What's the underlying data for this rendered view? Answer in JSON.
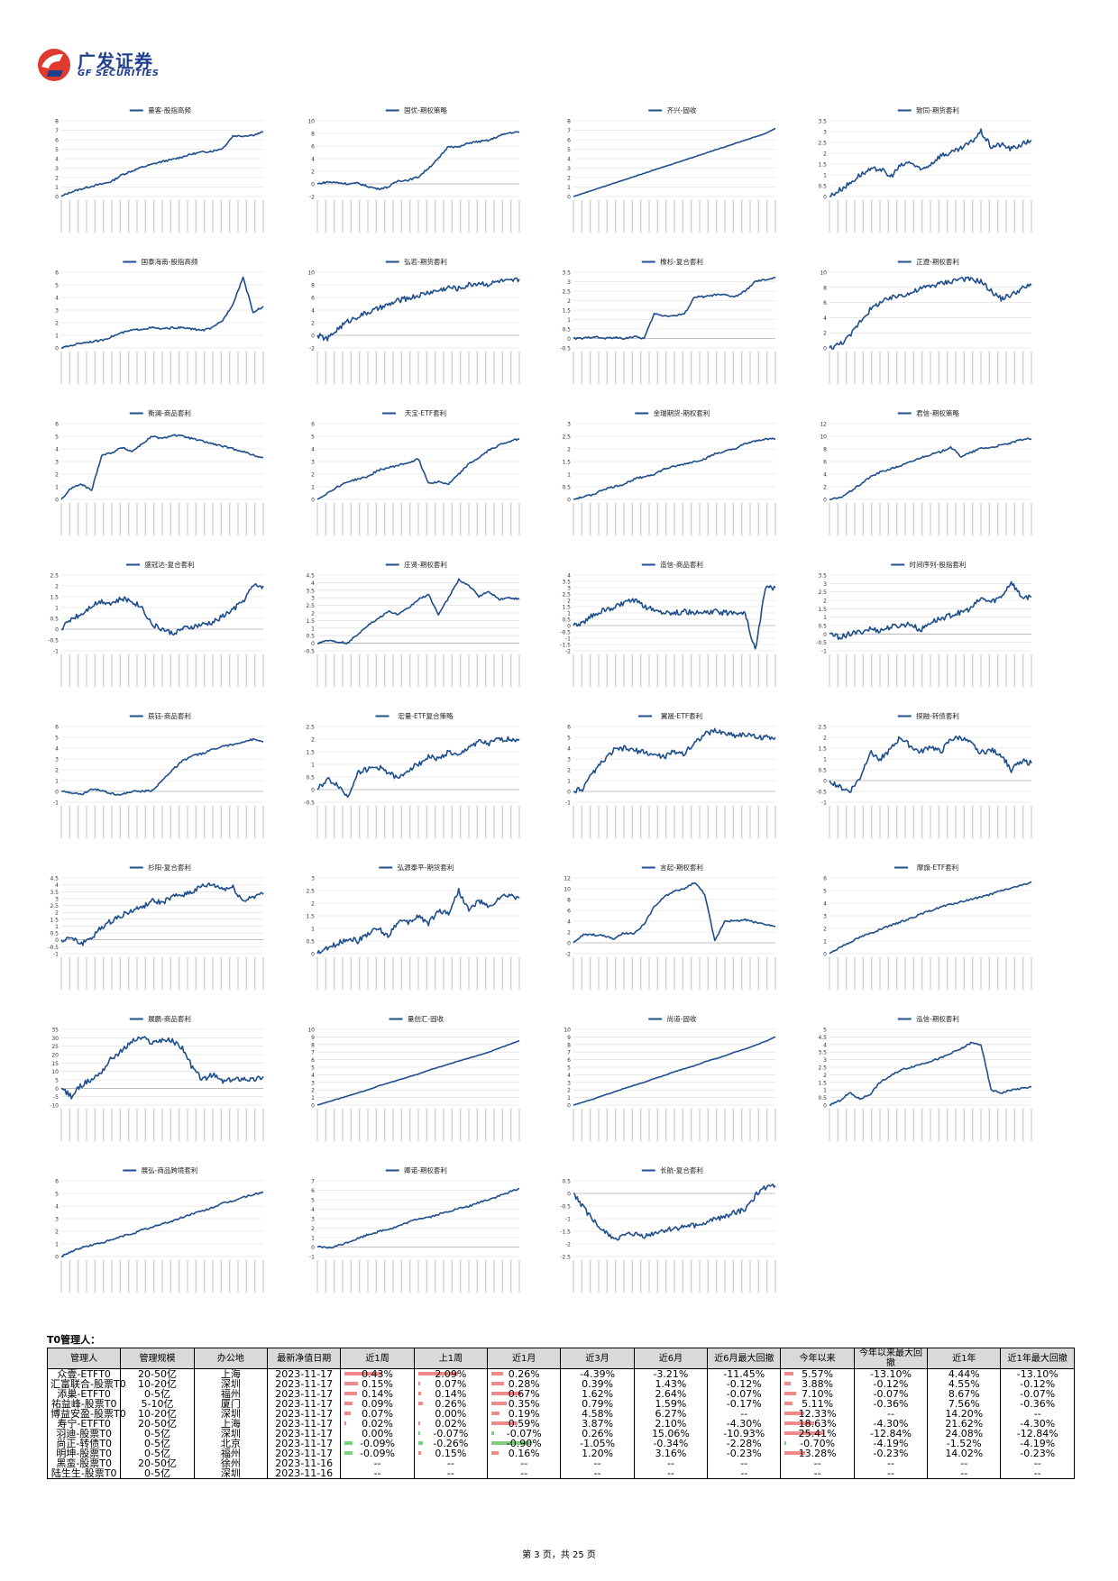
{
  "header": {
    "logo_cn": "广发证券",
    "logo_en": "GF SECURITIES",
    "colors": {
      "brand_blue": "#1f3f8f",
      "brand_red": "#e03a2f",
      "line": "#1f4e8c"
    }
  },
  "charts": [
    {
      "title": "量客-股指高频",
      "yticks": [
        "0",
        "1",
        "2",
        "3",
        "4",
        "5",
        "6",
        "7",
        "8"
      ],
      "ymin": 0,
      "ymax": 8,
      "kind": "smooth",
      "pts": [
        0,
        0.5,
        0.8,
        1.1,
        1.3,
        1.6,
        2.3,
        2.7,
        3.1,
        3.4,
        3.7,
        3.9,
        4.2,
        4.5,
        4.7,
        4.8,
        5.1,
        6.4,
        6.4,
        6.5,
        6.8
      ]
    },
    {
      "title": "国优-期权策略",
      "yticks": [
        "-2",
        "0",
        "2",
        "4",
        "6",
        "8",
        "10"
      ],
      "ymin": -2,
      "ymax": 10,
      "kind": "smooth",
      "pts": [
        0,
        0.3,
        0.2,
        0,
        0.1,
        -0.4,
        -0.8,
        -0.5,
        0.5,
        0.6,
        1.1,
        2.5,
        4,
        6,
        5.8,
        6.5,
        6.7,
        6.9,
        7.6,
        8.1,
        8.2
      ]
    },
    {
      "title": "齐兴-固收",
      "yticks": [
        "0",
        "1",
        "2",
        "3",
        "4",
        "5",
        "6",
        "7",
        "8"
      ],
      "ymin": 0,
      "ymax": 8,
      "kind": "linear",
      "pts": [
        0,
        0.35,
        0.7,
        1.05,
        1.4,
        1.75,
        2.1,
        2.45,
        2.8,
        3.15,
        3.5,
        3.85,
        4.2,
        4.55,
        4.9,
        5.25,
        5.6,
        5.95,
        6.3,
        6.65,
        7.2
      ]
    },
    {
      "title": "致同-期货套利",
      "yticks": [
        "0",
        "0.5",
        "1",
        "1.5",
        "2",
        "2.5",
        "3",
        "3.5"
      ],
      "ymin": 0,
      "ymax": 3.5,
      "kind": "noisy",
      "pts": [
        0,
        0.3,
        0.6,
        1.0,
        1.2,
        1.3,
        0.9,
        1.4,
        1.6,
        1.2,
        1.5,
        1.9,
        2.0,
        2.2,
        2.5,
        3.0,
        2.3,
        2.4,
        2.2,
        2.4,
        2.6
      ]
    },
    {
      "title": "国泰海南-股指高频",
      "yticks": [
        "0",
        "1",
        "2",
        "3",
        "4",
        "5",
        "6"
      ],
      "ymin": 0,
      "ymax": 6,
      "kind": "smooth",
      "pts": [
        0,
        0.2,
        0.4,
        0.5,
        0.6,
        0.9,
        1.2,
        1.4,
        1.5,
        1.6,
        1.5,
        1.6,
        1.6,
        1.5,
        1.4,
        1.6,
        2.2,
        3.5,
        5.6,
        2.8,
        3.3
      ]
    },
    {
      "title": "弘若-期货套利",
      "yticks": [
        "-2",
        "0",
        "2",
        "4",
        "6",
        "8",
        "10"
      ],
      "ymin": -2,
      "ymax": 10,
      "kind": "noisy",
      "pts": [
        0,
        -0.6,
        1.0,
        2.2,
        3.0,
        3.6,
        4.2,
        4.8,
        5.5,
        5.9,
        6.3,
        6.8,
        7.1,
        7.6,
        7.4,
        8.0,
        8.3,
        8.1,
        8.6,
        8.5,
        8.9
      ]
    },
    {
      "title": "橡杉-复合套利",
      "yticks": [
        "-0.5",
        "0",
        "0.5",
        "1",
        "1.5",
        "2",
        "2.5",
        "3",
        "3.5"
      ],
      "ymin": -0.5,
      "ymax": 3.5,
      "kind": "smooth",
      "pts": [
        0,
        0,
        0.1,
        0,
        0.05,
        0,
        0.1,
        0,
        1.3,
        1.2,
        1.2,
        1.3,
        2.2,
        2.2,
        2.3,
        2.3,
        2.2,
        2.5,
        3.0,
        3.1,
        3.2
      ]
    },
    {
      "title": "正遼-期权套利",
      "yticks": [
        "0",
        "2",
        "4",
        "6",
        "8",
        "10"
      ],
      "ymin": 0,
      "ymax": 10,
      "kind": "noisy",
      "pts": [
        0,
        0.5,
        1.5,
        3.5,
        5,
        6,
        6.5,
        7,
        7.2,
        7.8,
        8.2,
        8.5,
        8.8,
        9.2,
        9.0,
        8.8,
        7.5,
        6.5,
        7.0,
        7.8,
        8.3
      ]
    },
    {
      "title": "衡澜-商品套利",
      "yticks": [
        "0",
        "1",
        "2",
        "3",
        "4",
        "5",
        "6"
      ],
      "ymin": 0,
      "ymax": 6,
      "kind": "smooth",
      "pts": [
        0,
        0.9,
        1.2,
        0.7,
        3.5,
        3.7,
        4.1,
        3.8,
        4.4,
        5.0,
        4.8,
        5.1,
        5.0,
        4.8,
        4.6,
        4.4,
        4.2,
        4.0,
        3.8,
        3.5,
        3.3
      ]
    },
    {
      "title": "天宝-ETF套利",
      "yticks": [
        "0",
        "1",
        "2",
        "3",
        "4",
        "5",
        "6"
      ],
      "ymin": 0,
      "ymax": 6,
      "kind": "smooth",
      "pts": [
        0,
        0.5,
        1.0,
        1.4,
        1.6,
        1.8,
        2.3,
        2.5,
        2.7,
        2.9,
        3.2,
        1.3,
        1.4,
        1.2,
        2.0,
        2.8,
        3.3,
        3.9,
        4.3,
        4.6,
        4.8
      ]
    },
    {
      "title": "金瑞期货-期权套利",
      "yticks": [
        "0",
        "0.5",
        "1",
        "1.5",
        "2",
        "2.5",
        "3"
      ],
      "ymin": 0,
      "ymax": 3,
      "kind": "smooth",
      "pts": [
        0,
        0.1,
        0.2,
        0.4,
        0.5,
        0.6,
        0.8,
        0.9,
        1.0,
        1.2,
        1.3,
        1.4,
        1.5,
        1.6,
        1.8,
        1.9,
        2.0,
        2.2,
        2.3,
        2.4,
        2.4
      ]
    },
    {
      "title": "君信-期权策略",
      "yticks": [
        "0",
        "2",
        "4",
        "6",
        "8",
        "10",
        "12"
      ],
      "ymin": 0,
      "ymax": 12,
      "kind": "smooth",
      "pts": [
        0,
        0.2,
        1.2,
        2.3,
        3.5,
        4.3,
        4.8,
        5.3,
        5.9,
        6.6,
        7.1,
        7.5,
        8.3,
        6.8,
        7.4,
        8.1,
        8.2,
        8.6,
        8.9,
        9.5,
        9.6
      ]
    },
    {
      "title": "盛冠达-复合套利",
      "yticks": [
        "-1",
        "-0.5",
        "0",
        "0.5",
        "1",
        "1.5",
        "2",
        "2.5"
      ],
      "ymin": -1,
      "ymax": 2.5,
      "kind": "noisy",
      "pts": [
        0,
        0.5,
        0.7,
        1.1,
        1.3,
        1.2,
        1.4,
        1.3,
        1.0,
        0.2,
        0.0,
        -0.2,
        0,
        0.1,
        0.2,
        0.3,
        0.6,
        0.9,
        1.3,
        2.0,
        2.0
      ]
    },
    {
      "title": "庄贤-期权套利",
      "yticks": [
        "-0.5",
        "0",
        "0.5",
        "1",
        "1.5",
        "2",
        "2.5",
        "3",
        "3.5",
        "4",
        "4.5"
      ],
      "ymin": -0.5,
      "ymax": 4.5,
      "kind": "smooth",
      "pts": [
        0,
        0.2,
        0.1,
        0,
        0.6,
        1.2,
        1.6,
        2.1,
        1.9,
        2.3,
        2.9,
        3.2,
        1.9,
        3.0,
        4.2,
        3.8,
        3.1,
        3.4,
        2.9,
        3.0,
        2.9
      ]
    },
    {
      "title": "造信-商品套利",
      "yticks": [
        "-2",
        "-1.5",
        "-1",
        "-0.5",
        "0",
        "0.5",
        "1",
        "1.5",
        "2",
        "2.5",
        "3",
        "3.5",
        "4"
      ],
      "ymin": -2,
      "ymax": 4,
      "kind": "noisy",
      "pts": [
        0,
        0.2,
        0.9,
        1.2,
        1.4,
        1.8,
        2.0,
        1.5,
        1.2,
        1.1,
        1.0,
        1.1,
        1.0,
        1.0,
        1.1,
        1.0,
        1.1,
        1.0,
        -2,
        3.0,
        3.0
      ]
    },
    {
      "title": "时间序列-股指套利",
      "yticks": [
        "-1",
        "-0.5",
        "0",
        "0.5",
        "1",
        "1.5",
        "2",
        "2.5",
        "3",
        "3.5"
      ],
      "ymin": -1,
      "ymax": 3.5,
      "kind": "noisy",
      "pts": [
        0,
        -0.2,
        0,
        0.1,
        0.3,
        0.2,
        0.4,
        0.5,
        0.6,
        0.2,
        0.7,
        0.9,
        1.1,
        1.3,
        1.5,
        2.1,
        1.9,
        2.2,
        3.1,
        2.2,
        2.2
      ]
    },
    {
      "title": "辰钰-商品套利",
      "yticks": [
        "-1",
        "0",
        "1",
        "2",
        "3",
        "4",
        "5",
        "6"
      ],
      "ymin": -1,
      "ymax": 6,
      "kind": "smooth",
      "pts": [
        0,
        -0.1,
        -0.3,
        0.2,
        0.1,
        -0.2,
        -0.3,
        0,
        0,
        0.1,
        1.0,
        2.0,
        2.8,
        3.3,
        3.5,
        3.9,
        4.2,
        4.3,
        4.6,
        4.8,
        4.6
      ]
    },
    {
      "title": "宏量-ETF复合策略",
      "yticks": [
        "-0.5",
        "0",
        "0.5",
        "1",
        "1.5",
        "2",
        "2.5"
      ],
      "ymin": -0.5,
      "ymax": 2.5,
      "kind": "noisy",
      "pts": [
        0,
        0.4,
        0.2,
        -0.3,
        0.7,
        0.8,
        0.9,
        0.7,
        0.4,
        0.8,
        1.0,
        1.3,
        1.2,
        1.5,
        1.3,
        1.7,
        1.9,
        1.8,
        2.0,
        2.0,
        2.0
      ]
    },
    {
      "title": "翼晟-ETF套利",
      "yticks": [
        "-1",
        "0",
        "1",
        "2",
        "3",
        "4",
        "5",
        "6"
      ],
      "ymin": -1,
      "ymax": 6,
      "kind": "noisy",
      "pts": [
        0,
        0.3,
        1.8,
        2.8,
        3.8,
        4.0,
        3.8,
        3.6,
        3.4,
        3.2,
        3.7,
        3.5,
        4.5,
        5.3,
        5.6,
        5.4,
        5.2,
        5.3,
        5.0,
        5.0,
        5.0
      ]
    },
    {
      "title": "探融-转债套利",
      "yticks": [
        "-1",
        "-0.5",
        "0",
        "0.5",
        "1",
        "1.5",
        "2",
        "2.5"
      ],
      "ymin": -1,
      "ymax": 2.5,
      "kind": "noisy",
      "pts": [
        0,
        -0.3,
        -0.5,
        0.1,
        1.3,
        1.0,
        1.4,
        2.0,
        1.6,
        1.3,
        1.6,
        1.3,
        1.9,
        2.0,
        1.7,
        1.3,
        1.4,
        1.2,
        0.5,
        0.9,
        0.8
      ]
    },
    {
      "title": "杉阳-复合套利",
      "yticks": [
        "-1",
        "-0.5",
        "0",
        "0.5",
        "1",
        "1.5",
        "2",
        "2.5",
        "3",
        "3.5",
        "4",
        "4.5"
      ],
      "ymin": -1,
      "ymax": 4.5,
      "kind": "noisy",
      "pts": [
        0,
        0.1,
        -0.3,
        0.2,
        0.9,
        1.4,
        1.8,
        2.1,
        2.4,
        2.8,
        2.7,
        3.1,
        3.3,
        3.5,
        3.9,
        4.0,
        3.7,
        3.8,
        2.8,
        3.2,
        3.3
      ]
    },
    {
      "title": "弘源泰平-期货套利",
      "yticks": [
        "0",
        "0.5",
        "1",
        "1.5",
        "2",
        "2.5",
        "3"
      ],
      "ymin": 0,
      "ymax": 3,
      "kind": "noisy",
      "pts": [
        0,
        0.2,
        0.4,
        0.6,
        0.5,
        0.8,
        1.0,
        0.7,
        1.3,
        1.2,
        1.5,
        1.2,
        1.7,
        1.6,
        2.5,
        1.7,
        2.1,
        1.8,
        2.2,
        2.3,
        2.2
      ]
    },
    {
      "title": "言起-期权套利",
      "yticks": [
        "-2",
        "0",
        "2",
        "4",
        "6",
        "8",
        "10",
        "12"
      ],
      "ymin": -2,
      "ymax": 12,
      "kind": "smooth",
      "pts": [
        0,
        1.5,
        1.5,
        1.3,
        0.7,
        1.8,
        1.6,
        3.5,
        6.6,
        8.5,
        9.5,
        10.0,
        11.2,
        9.0,
        0.3,
        4.1,
        4.0,
        4.3,
        3.8,
        3.5,
        3.0
      ]
    },
    {
      "title": "摩旗-ETF套利",
      "yticks": [
        "0",
        "1",
        "2",
        "3",
        "4",
        "5",
        "6"
      ],
      "ymin": 0,
      "ymax": 6,
      "kind": "smooth",
      "pts": [
        0,
        0.5,
        0.9,
        1.3,
        1.6,
        1.9,
        2.2,
        2.5,
        2.8,
        3.1,
        3.4,
        3.7,
        3.9,
        4.1,
        4.3,
        4.5,
        4.7,
        5.0,
        5.2,
        5.4,
        5.7
      ]
    },
    {
      "title": "展鹏-商品套利",
      "yticks": [
        "-10",
        "-5",
        "0",
        "5",
        "10",
        "15",
        "20",
        "25",
        "30",
        "35"
      ],
      "ymin": -10,
      "ymax": 35,
      "kind": "noisy",
      "pts": [
        0,
        -5,
        2,
        5,
        10,
        18,
        22,
        28,
        30,
        27,
        29,
        28,
        24,
        12,
        5,
        8,
        4,
        5,
        6,
        5,
        7
      ]
    },
    {
      "title": "量创汇-固收",
      "yticks": [
        "0",
        "1",
        "2",
        "3",
        "4",
        "5",
        "6",
        "7",
        "8",
        "9",
        "10"
      ],
      "ymin": 0,
      "ymax": 10,
      "kind": "linear",
      "pts": [
        0,
        0.4,
        0.8,
        1.2,
        1.6,
        2.0,
        2.5,
        2.9,
        3.3,
        3.7,
        4.1,
        4.6,
        5.0,
        5.4,
        5.8,
        6.2,
        6.6,
        7.0,
        7.5,
        8.0,
        8.5
      ]
    },
    {
      "title": "尚道-固收",
      "yticks": [
        "0",
        "1",
        "2",
        "3",
        "4",
        "5",
        "6",
        "7",
        "8",
        "9",
        "10"
      ],
      "ymin": 0,
      "ymax": 10,
      "kind": "linear",
      "pts": [
        0,
        0.4,
        0.8,
        1.3,
        1.7,
        2.2,
        2.6,
        3.0,
        3.5,
        3.9,
        4.4,
        4.8,
        5.2,
        5.7,
        6.1,
        6.5,
        7.0,
        7.4,
        7.9,
        8.4,
        9.0
      ]
    },
    {
      "title": "泓信-期权套利",
      "yticks": [
        "0",
        "0.5",
        "1",
        "1.5",
        "2",
        "2.5",
        "3",
        "3.5",
        "4",
        "4.5",
        "5"
      ],
      "ymin": 0,
      "ymax": 5,
      "kind": "smooth",
      "pts": [
        0,
        0.3,
        0.8,
        0.4,
        0.7,
        1.5,
        1.9,
        2.3,
        2.5,
        2.7,
        2.9,
        3.1,
        3.4,
        3.7,
        4.1,
        4.0,
        1.0,
        0.8,
        1.0,
        1.1,
        1.2
      ]
    },
    {
      "title": "展弘-商品跨境套利",
      "yticks": [
        "0",
        "1",
        "2",
        "3",
        "4",
        "5",
        "6"
      ],
      "ymin": 0,
      "ymax": 6,
      "kind": "smooth",
      "pts": [
        0,
        0.4,
        0.7,
        0.9,
        1.1,
        1.3,
        1.6,
        1.8,
        2.1,
        2.3,
        2.6,
        2.8,
        3.1,
        3.4,
        3.6,
        3.9,
        4.2,
        4.4,
        4.7,
        4.9,
        5.1
      ]
    },
    {
      "title": "卿诺-期权套利",
      "yticks": [
        "-1",
        "0",
        "1",
        "2",
        "3",
        "4",
        "5",
        "6",
        "7"
      ],
      "ymin": -1,
      "ymax": 7,
      "kind": "smooth",
      "pts": [
        0,
        -0.1,
        0.3,
        0.8,
        1.3,
        1.7,
        2.0,
        2.5,
        3.0,
        3.2,
        3.6,
        4.0,
        4.3,
        4.8,
        5.2,
        5.7,
        6.2
      ]
    },
    {
      "title": "长航-复合套利",
      "yticks": [
        "-2.5",
        "-2",
        "-1.5",
        "-1",
        "-0.5",
        "0",
        "0.5"
      ],
      "ymin": -2.5,
      "ymax": 0.5,
      "kind": "noisy",
      "pts": [
        0,
        -0.8,
        -1.5,
        -1.8,
        -1.6,
        -1.7,
        -1.5,
        -1.4,
        -1.3,
        -1.2,
        -1.0,
        -0.8,
        -0.6,
        0.2,
        0.3
      ]
    }
  ],
  "t0": {
    "title": "T0管理人：",
    "headers": [
      "管理人",
      "管理规模",
      "办公地",
      "最新净值日期",
      "近1周",
      "上1周",
      "近1月",
      "近3月",
      "近6月",
      "近6月最大回撤",
      "今年以来",
      "今年以来最大回撤",
      "近1年",
      "近1年最大回撤"
    ],
    "rows": [
      [
        "众壹-ETFT0",
        "20-50亿",
        "上海",
        "2023-11-17",
        "0.43%",
        "2.09%",
        "0.26%",
        "-4.39%",
        "-3.21%",
        "-11.45%",
        "5.57%",
        "-13.10%",
        "4.44%",
        "-13.10%"
      ],
      [
        "汇富联合-股票T0",
        "10-20亿",
        "深圳",
        "2023-11-17",
        "0.15%",
        "0.07%",
        "0.28%",
        "0.39%",
        "1.43%",
        "-0.12%",
        "3.88%",
        "-0.12%",
        "4.55%",
        "-0.12%"
      ],
      [
        "添巢-ETFT0",
        "0-5亿",
        "福州",
        "2023-11-17",
        "0.14%",
        "0.14%",
        "0.67%",
        "1.62%",
        "2.64%",
        "-0.07%",
        "7.10%",
        "-0.07%",
        "8.67%",
        "-0.07%"
      ],
      [
        "祐益峰-股票T0",
        "5-10亿",
        "厦门",
        "2023-11-17",
        "0.09%",
        "0.26%",
        "0.35%",
        "0.79%",
        "1.59%",
        "-0.17%",
        "5.11%",
        "-0.36%",
        "7.56%",
        "-0.36%"
      ],
      [
        "博益安盈-股票T0",
        "10-20亿",
        "深圳",
        "2023-11-17",
        "0.07%",
        "0.00%",
        "0.19%",
        "4.58%",
        "6.27%",
        "--",
        "12.33%",
        "--",
        "14.20%",
        "--"
      ],
      [
        "寿宁-ETFT0",
        "20-50亿",
        "上海",
        "2023-11-17",
        "0.02%",
        "0.02%",
        "0.59%",
        "3.87%",
        "2.10%",
        "-4.30%",
        "18.63%",
        "-4.30%",
        "21.62%",
        "-4.30%"
      ],
      [
        "羽迪-股票T0",
        "0-5亿",
        "深圳",
        "2023-11-17",
        "0.00%",
        "-0.07%",
        "-0.07%",
        "0.26%",
        "15.06%",
        "-10.93%",
        "25.41%",
        "-12.84%",
        "24.08%",
        "-12.84%"
      ],
      [
        "尚正-转债T0",
        "0-5亿",
        "北京",
        "2023-11-17",
        "-0.09%",
        "-0.26%",
        "-0.90%",
        "-1.05%",
        "-0.34%",
        "-2.28%",
        "-0.70%",
        "-4.19%",
        "-1.52%",
        "-4.19%"
      ],
      [
        "明坤-股票T0",
        "0-5亿",
        "福州",
        "2023-11-17",
        "-0.09%",
        "0.15%",
        "0.16%",
        "1.20%",
        "3.16%",
        "-0.23%",
        "13.28%",
        "-0.23%",
        "14.02%",
        "-0.23%"
      ],
      [
        "黑蛮-股票T0",
        "20-50亿",
        "徐州",
        "2023-11-16",
        "--",
        "--",
        "--",
        "--",
        "--",
        "--",
        "--",
        "--",
        "--",
        "--"
      ],
      [
        "陆生生-股票T0",
        "0-5亿",
        "深圳",
        "2023-11-16",
        "--",
        "--",
        "--",
        "--",
        "--",
        "--",
        "--",
        "--",
        "--",
        "--"
      ]
    ],
    "bar_columns": [
      4,
      5,
      6,
      10
    ],
    "bar_scale": {
      "4": 0.45,
      "5": 2.1,
      "6": 0.9,
      "10": 25.5
    }
  },
  "footer": {
    "page_text": "第 3 页，共 25 页"
  }
}
